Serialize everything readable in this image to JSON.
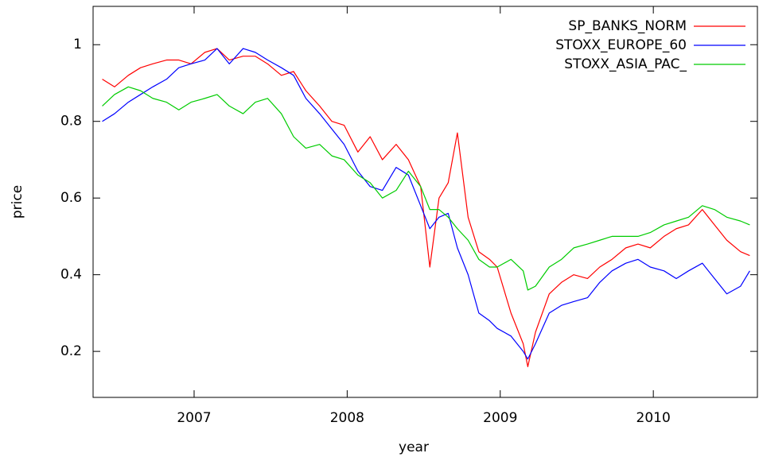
{
  "chart_data": {
    "type": "line",
    "xlabel": "year",
    "ylabel": "price",
    "x": [
      2006.4,
      2006.48,
      2006.57,
      2006.65,
      2006.73,
      2006.82,
      2006.9,
      2006.98,
      2007.07,
      2007.15,
      2007.23,
      2007.32,
      2007.4,
      2007.48,
      2007.57,
      2007.65,
      2007.73,
      2007.82,
      2007.9,
      2007.98,
      2008.07,
      2008.15,
      2008.23,
      2008.32,
      2008.4,
      2008.48,
      2008.54,
      2008.6,
      2008.66,
      2008.72,
      2008.79,
      2008.86,
      2008.93,
      2008.98,
      2009.07,
      2009.15,
      2009.18,
      2009.23,
      2009.32,
      2009.4,
      2009.48,
      2009.57,
      2009.65,
      2009.73,
      2009.82,
      2009.9,
      2009.98,
      2010.07,
      2010.15,
      2010.23,
      2010.32,
      2010.4,
      2010.48,
      2010.57,
      2010.63
    ],
    "series": [
      {
        "name": "SP_BANKS_NORM",
        "color": "#ff0000",
        "values": [
          0.91,
          0.89,
          0.92,
          0.94,
          0.95,
          0.96,
          0.96,
          0.95,
          0.98,
          0.99,
          0.96,
          0.97,
          0.97,
          0.95,
          0.92,
          0.93,
          0.88,
          0.84,
          0.8,
          0.79,
          0.72,
          0.76,
          0.7,
          0.74,
          0.7,
          0.63,
          0.42,
          0.6,
          0.64,
          0.77,
          0.55,
          0.46,
          0.44,
          0.42,
          0.3,
          0.22,
          0.16,
          0.25,
          0.35,
          0.38,
          0.4,
          0.39,
          0.42,
          0.44,
          0.47,
          0.48,
          0.47,
          0.5,
          0.52,
          0.53,
          0.57,
          0.53,
          0.49,
          0.46,
          0.45
        ]
      },
      {
        "name": "STOXX_EUROPE_60",
        "color": "#0000ff",
        "values": [
          0.8,
          0.82,
          0.85,
          0.87,
          0.89,
          0.91,
          0.94,
          0.95,
          0.96,
          0.99,
          0.95,
          0.99,
          0.98,
          0.96,
          0.94,
          0.92,
          0.86,
          0.82,
          0.78,
          0.74,
          0.67,
          0.63,
          0.62,
          0.68,
          0.66,
          0.58,
          0.52,
          0.55,
          0.56,
          0.47,
          0.4,
          0.3,
          0.28,
          0.26,
          0.24,
          0.2,
          0.18,
          0.22,
          0.3,
          0.32,
          0.33,
          0.34,
          0.38,
          0.41,
          0.43,
          0.44,
          0.42,
          0.41,
          0.39,
          0.41,
          0.43,
          0.39,
          0.35,
          0.37,
          0.41
        ]
      },
      {
        "name": "STOXX_ASIA_PAC_",
        "color": "#00cc00",
        "values": [
          0.84,
          0.87,
          0.89,
          0.88,
          0.86,
          0.85,
          0.83,
          0.85,
          0.86,
          0.87,
          0.84,
          0.82,
          0.85,
          0.86,
          0.82,
          0.76,
          0.73,
          0.74,
          0.71,
          0.7,
          0.66,
          0.64,
          0.6,
          0.62,
          0.67,
          0.63,
          0.57,
          0.57,
          0.55,
          0.52,
          0.49,
          0.44,
          0.42,
          0.42,
          0.44,
          0.41,
          0.36,
          0.37,
          0.42,
          0.44,
          0.47,
          0.48,
          0.49,
          0.5,
          0.5,
          0.5,
          0.51,
          0.53,
          0.54,
          0.55,
          0.58,
          0.57,
          0.55,
          0.54,
          0.53
        ]
      }
    ],
    "xlim": [
      2006.34,
      2010.68
    ],
    "xticks": [
      2007,
      2008,
      2009,
      2010
    ],
    "ylim": [
      0.08,
      1.1
    ],
    "yticks": [
      0.2,
      0.4,
      0.6,
      0.8,
      1
    ],
    "grid": false,
    "legend": "top-right"
  }
}
